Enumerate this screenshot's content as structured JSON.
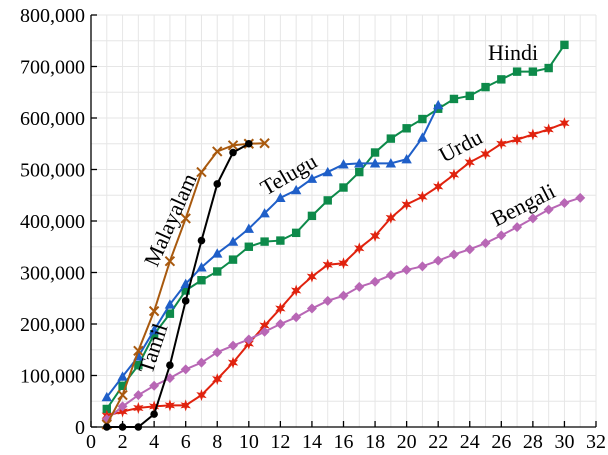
{
  "chart_data": {
    "type": "line",
    "title": "",
    "xlabel": "",
    "ylabel": "",
    "xlim": [
      0,
      32
    ],
    "ylim": [
      0,
      800000
    ],
    "grid": true,
    "x_ticks": [
      "0",
      "2",
      "4",
      "6",
      "8",
      "10",
      "12",
      "14",
      "16",
      "18",
      "20",
      "22",
      "24",
      "26",
      "28",
      "30",
      "32"
    ],
    "y_ticks": [
      "0",
      "100,000",
      "200,000",
      "300,000",
      "400,000",
      "500,000",
      "600,000",
      "700,000",
      "800,000"
    ],
    "series": [
      {
        "name": "Hindi",
        "color": "#0d8a4a",
        "marker": "square",
        "x": [
          1,
          2,
          3,
          4,
          5,
          6,
          7,
          8,
          9,
          10,
          11,
          12,
          13,
          14,
          15,
          16,
          17,
          18,
          19,
          20,
          21,
          22,
          23,
          24,
          25,
          26,
          27,
          28,
          29,
          30
        ],
        "y": [
          35000,
          80000,
          120000,
          180000,
          220000,
          265000,
          285000,
          302000,
          325000,
          350000,
          360000,
          362000,
          377000,
          410000,
          440000,
          465000,
          495000,
          533000,
          560000,
          580000,
          598000,
          618000,
          637000,
          643000,
          660000,
          675000,
          690000,
          690000,
          697000,
          742000
        ]
      },
      {
        "name": "Telugu",
        "color": "#1f5fc8",
        "marker": "triangle",
        "x": [
          1,
          2,
          3,
          4,
          5,
          6,
          7,
          8,
          9,
          10,
          11,
          12,
          13,
          14,
          15,
          16,
          17,
          18,
          19,
          20,
          21,
          22
        ],
        "y": [
          58000,
          98000,
          137000,
          188000,
          238000,
          278000,
          310000,
          337000,
          360000,
          385000,
          415000,
          445000,
          460000,
          482000,
          495000,
          510000,
          512000,
          512000,
          512000,
          520000,
          562000,
          625000
        ]
      },
      {
        "name": "Urdu",
        "color": "#e0220e",
        "marker": "star",
        "x": [
          1,
          2,
          3,
          4,
          5,
          6,
          7,
          8,
          9,
          10,
          11,
          12,
          13,
          14,
          15,
          16,
          17,
          18,
          19,
          20,
          21,
          22,
          23,
          24,
          25,
          26,
          27,
          28,
          29,
          30
        ],
        "y": [
          22000,
          30000,
          37000,
          40000,
          42000,
          42000,
          62000,
          93000,
          125000,
          162000,
          197000,
          230000,
          265000,
          292000,
          315000,
          318000,
          347000,
          371000,
          406000,
          432000,
          447000,
          467000,
          490000,
          514000,
          530000,
          550000,
          558000,
          568000,
          578000,
          590000
        ]
      },
      {
        "name": "Bengali",
        "color": "#b867b5",
        "marker": "diamond",
        "x": [
          1,
          2,
          3,
          4,
          5,
          6,
          7,
          8,
          9,
          10,
          11,
          12,
          13,
          14,
          15,
          16,
          17,
          18,
          19,
          20,
          21,
          22,
          23,
          24,
          25,
          26,
          27,
          28,
          29,
          30,
          31
        ],
        "y": [
          15000,
          40000,
          62000,
          80000,
          95000,
          112000,
          125000,
          145000,
          158000,
          170000,
          185000,
          200000,
          213000,
          230000,
          245000,
          255000,
          272000,
          282000,
          295000,
          305000,
          312000,
          323000,
          335000,
          345000,
          357000,
          372000,
          388000,
          405000,
          422000,
          435000,
          445000
        ]
      },
      {
        "name": "Malayalam",
        "color": "#a8590e",
        "marker": "x",
        "x": [
          1,
          2,
          3,
          4,
          5,
          6,
          7,
          8,
          9,
          10,
          11
        ],
        "y": [
          5000,
          62000,
          148000,
          225000,
          322000,
          405000,
          495000,
          535000,
          547000,
          550000,
          551000
        ]
      },
      {
        "name": "Tamil",
        "color": "#000000",
        "marker": "circle",
        "x": [
          1,
          2,
          3,
          4,
          5,
          6,
          7,
          8,
          9,
          10
        ],
        "y": [
          0,
          0,
          0,
          25000,
          120000,
          245000,
          362000,
          472000,
          533000,
          550000
        ]
      }
    ],
    "annotations": [
      "Hindi",
      "Telugu",
      "Urdu",
      "Bengali",
      "Malayalam",
      "Tamil"
    ]
  }
}
